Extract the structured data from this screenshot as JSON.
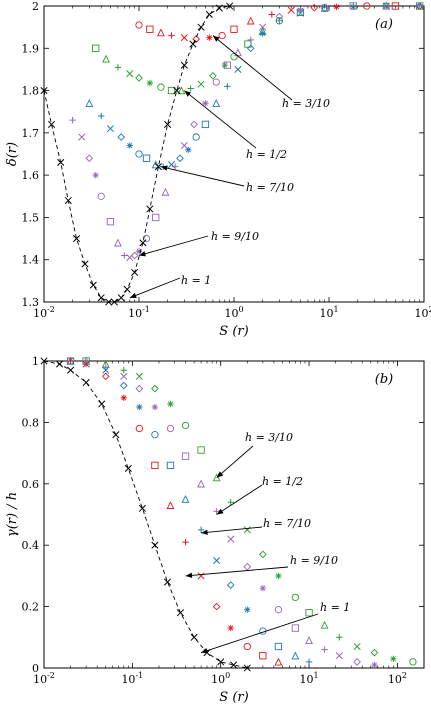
{
  "chart_data": [
    {
      "panel": "(a)",
      "type": "scatter",
      "xlabel": "S (r)",
      "ylabel": "δ(r)",
      "xscale": "log",
      "xlim": [
        0.01,
        100
      ],
      "ylim": [
        1.3,
        2.0
      ],
      "xticks": [
        0.01,
        0.1,
        1,
        10,
        100
      ],
      "xtick_labels": [
        "10-2",
        "10-1",
        "100",
        "101",
        "102"
      ],
      "yticks": [
        1.3,
        1.4,
        1.5,
        1.6,
        1.7,
        1.8,
        1.9,
        2.0
      ],
      "ytick_labels": [
        "1.3",
        "1.4",
        "1.5",
        "1.6",
        "1.7",
        "1.8",
        "1.9",
        "2"
      ],
      "series": [
        {
          "h": "3/10",
          "color": "#e41a1c",
          "x": [
            0.1,
            0.13,
            0.17,
            0.22,
            0.3,
            0.4,
            0.55,
            0.75,
            1.0,
            1.5,
            2.5,
            4,
            7,
            12,
            25,
            50,
            90
          ],
          "y": [
            1.955,
            1.945,
            1.937,
            1.93,
            1.925,
            1.922,
            1.925,
            1.93,
            1.945,
            1.965,
            1.98,
            1.99,
            1.996,
            1.998,
            2.0,
            2.0,
            2.0
          ]
        },
        {
          "h": "1/2",
          "color": "#2ca02c",
          "x": [
            0.035,
            0.045,
            0.06,
            0.08,
            0.1,
            0.13,
            0.17,
            0.22,
            0.28,
            0.35,
            0.45,
            0.6,
            0.8,
            1.0,
            1.4,
            2,
            3,
            5,
            9,
            18,
            40,
            90
          ],
          "y": [
            1.9,
            1.875,
            1.855,
            1.84,
            1.83,
            1.818,
            1.808,
            1.8,
            1.8,
            1.805,
            1.815,
            1.835,
            1.86,
            1.88,
            1.91,
            1.94,
            1.965,
            1.983,
            1.994,
            1.998,
            2.0,
            2.0
          ]
        },
        {
          "h": "7/10",
          "color": "#1f77b4",
          "x": [
            0.03,
            0.04,
            0.05,
            0.065,
            0.08,
            0.1,
            0.12,
            0.15,
            0.18,
            0.22,
            0.27,
            0.33,
            0.4,
            0.5,
            0.65,
            0.85,
            1.1,
            1.5,
            2,
            3,
            5,
            9,
            18,
            40,
            90
          ],
          "y": [
            1.77,
            1.74,
            1.71,
            1.69,
            1.67,
            1.65,
            1.64,
            1.625,
            1.62,
            1.625,
            1.64,
            1.66,
            1.69,
            1.72,
            1.77,
            1.81,
            1.85,
            1.9,
            1.935,
            1.965,
            1.985,
            1.995,
            1.999,
            2.0,
            2.0
          ]
        },
        {
          "h": "9/10",
          "color": "#9467bd",
          "x": [
            0.02,
            0.025,
            0.03,
            0.035,
            0.04,
            0.05,
            0.06,
            0.07,
            0.08,
            0.09,
            0.1,
            0.12,
            0.15,
            0.19,
            0.24,
            0.3,
            0.38,
            0.5,
            0.65,
            0.85,
            1.1,
            1.5,
            2,
            3,
            5,
            9,
            18,
            40,
            90
          ],
          "y": [
            1.73,
            1.69,
            1.64,
            1.6,
            1.55,
            1.49,
            1.44,
            1.41,
            1.405,
            1.41,
            1.42,
            1.45,
            1.5,
            1.56,
            1.62,
            1.67,
            1.72,
            1.77,
            1.82,
            1.86,
            1.89,
            1.92,
            1.95,
            1.975,
            1.99,
            1.997,
            2.0,
            2.0,
            2.0
          ]
        },
        {
          "h": "1",
          "color": "#000000",
          "dashed": true,
          "x": [
            0.01,
            0.012,
            0.015,
            0.018,
            0.022,
            0.027,
            0.033,
            0.04,
            0.048,
            0.055,
            0.065,
            0.075,
            0.09,
            0.11,
            0.13,
            0.16,
            0.2,
            0.25,
            0.3,
            0.37,
            0.45,
            0.55,
            0.7,
            0.9
          ],
          "y": [
            1.8,
            1.72,
            1.63,
            1.54,
            1.45,
            1.39,
            1.34,
            1.31,
            1.3,
            1.3,
            1.31,
            1.33,
            1.37,
            1.44,
            1.52,
            1.62,
            1.72,
            1.8,
            1.86,
            1.91,
            1.95,
            1.98,
            1.995,
            2.0
          ]
        }
      ],
      "annotations": [
        {
          "text": "h = 3/10",
          "target": [
            0.6,
            1.93
          ]
        },
        {
          "text": "h = 1/2",
          "target": [
            0.3,
            1.8
          ]
        },
        {
          "text": "h = 7/10",
          "target": [
            0.17,
            1.62
          ]
        },
        {
          "text": "h = 9/10",
          "target": [
            0.1,
            1.41
          ]
        },
        {
          "text": "h = 1",
          "target": [
            0.08,
            1.31
          ]
        }
      ]
    },
    {
      "panel": "(b)",
      "type": "scatter",
      "xlabel": "S (r)",
      "ylabel": "γ(r) / h",
      "xscale": "log",
      "xlim": [
        0.01,
        200
      ],
      "ylim": [
        0,
        1
      ],
      "xticks": [
        0.01,
        0.1,
        1,
        10,
        100
      ],
      "xtick_labels": [
        "10-2",
        "10-1",
        "100",
        "101",
        "102"
      ],
      "yticks": [
        0,
        0.2,
        0.4,
        0.6,
        0.8,
        1.0
      ],
      "ytick_labels": [
        "0",
        "0.2",
        "0.4",
        "0.6",
        "0.8",
        "1"
      ],
      "series": [
        {
          "h": "3/10",
          "color": "#2ca02c",
          "x": [
            0.02,
            0.03,
            0.05,
            0.08,
            0.12,
            0.18,
            0.27,
            0.4,
            0.6,
            0.9,
            1.3,
            2,
            3,
            4.5,
            7,
            10,
            15,
            22,
            35,
            55,
            90,
            150
          ],
          "y": [
            1.0,
            1.0,
            0.99,
            0.97,
            0.95,
            0.91,
            0.86,
            0.79,
            0.71,
            0.62,
            0.54,
            0.45,
            0.37,
            0.3,
            0.23,
            0.18,
            0.14,
            0.1,
            0.07,
            0.05,
            0.03,
            0.02
          ]
        },
        {
          "h": "1/2",
          "color": "#9467bd",
          "x": [
            0.02,
            0.03,
            0.05,
            0.08,
            0.12,
            0.18,
            0.27,
            0.4,
            0.6,
            0.9,
            1.3,
            2,
            3,
            4.5,
            7,
            10,
            15,
            22,
            35,
            55
          ],
          "y": [
            1.0,
            1.0,
            0.98,
            0.95,
            0.91,
            0.85,
            0.78,
            0.69,
            0.6,
            0.51,
            0.42,
            0.33,
            0.26,
            0.19,
            0.13,
            0.09,
            0.06,
            0.04,
            0.02,
            0.01
          ]
        },
        {
          "h": "7/10",
          "color": "#1f77b4",
          "x": [
            0.02,
            0.03,
            0.05,
            0.08,
            0.12,
            0.18,
            0.27,
            0.4,
            0.6,
            0.9,
            1.3,
            2,
            3,
            4.5,
            7,
            10
          ],
          "y": [
            1.0,
            0.99,
            0.97,
            0.92,
            0.85,
            0.76,
            0.66,
            0.55,
            0.45,
            0.35,
            0.27,
            0.19,
            0.12,
            0.07,
            0.04,
            0.02
          ]
        },
        {
          "h": "9/10",
          "color": "#e41a1c",
          "x": [
            0.02,
            0.03,
            0.05,
            0.08,
            0.12,
            0.18,
            0.27,
            0.4,
            0.6,
            0.9,
            1.3,
            2,
            3,
            4.5
          ],
          "y": [
            1.0,
            0.99,
            0.95,
            0.88,
            0.78,
            0.66,
            0.53,
            0.41,
            0.3,
            0.2,
            0.13,
            0.07,
            0.04,
            0.02
          ]
        },
        {
          "h": "1",
          "color": "#000000",
          "dashed": true,
          "x": [
            0.01,
            0.015,
            0.02,
            0.03,
            0.045,
            0.065,
            0.09,
            0.13,
            0.18,
            0.25,
            0.35,
            0.5,
            0.7,
            1.0,
            1.4,
            2
          ],
          "y": [
            1.0,
            0.99,
            0.97,
            0.93,
            0.86,
            0.76,
            0.65,
            0.52,
            0.4,
            0.28,
            0.18,
            0.1,
            0.05,
            0.02,
            0.01,
            0.0
          ]
        }
      ],
      "annotations": [
        {
          "text": "h = 3/10",
          "target": [
            0.9,
            0.62
          ]
        },
        {
          "text": "h = 1/2",
          "target": [
            0.9,
            0.5
          ]
        },
        {
          "text": "h = 7/10",
          "target": [
            0.6,
            0.44
          ]
        },
        {
          "text": "h = 9/10",
          "target": [
            0.4,
            0.3
          ]
        },
        {
          "text": "h = 1",
          "target": [
            0.6,
            0.05
          ]
        }
      ]
    }
  ]
}
